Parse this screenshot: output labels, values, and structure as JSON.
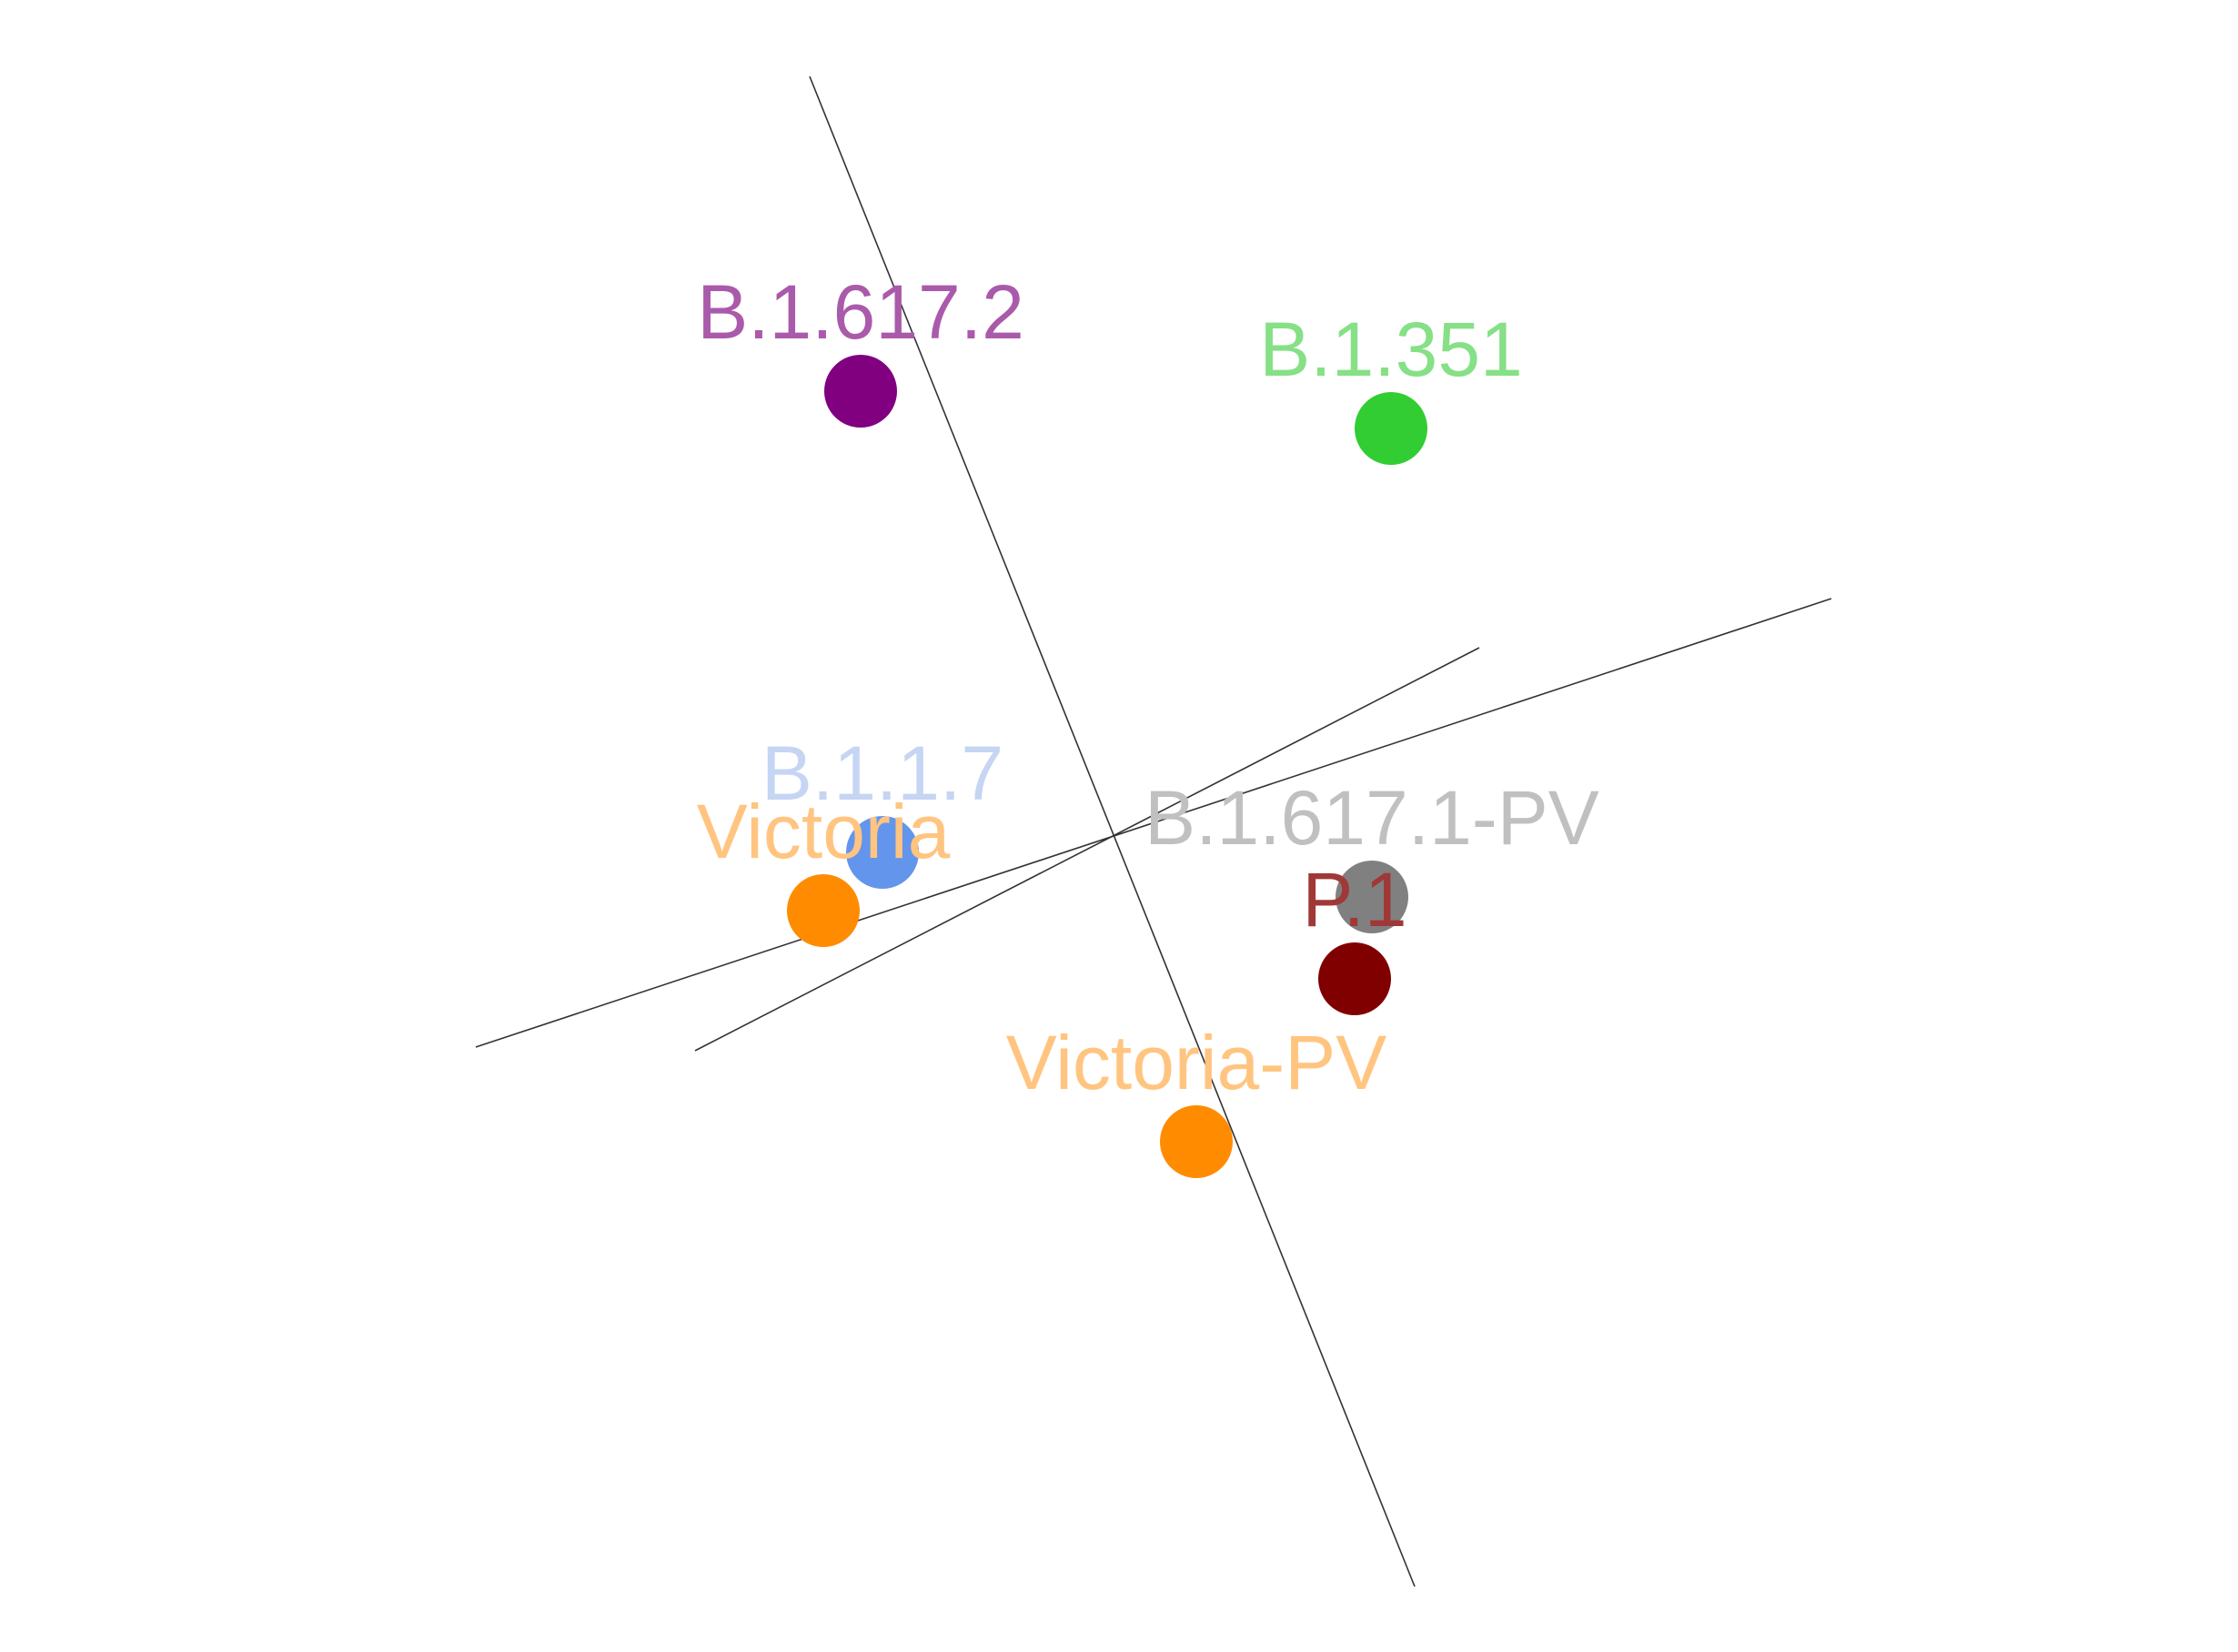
{
  "chart_data": {
    "type": "scatter",
    "title": "",
    "xlabel": "",
    "ylabel": "",
    "grid": false,
    "legend": "none",
    "axes": [
      {
        "from": [
          -3.42,
          8.3
        ],
        "to": [
          3.23,
          -8.3
        ]
      },
      {
        "from": [
          -7.09,
          -2.37
        ],
        "to": [
          7.81,
          2.56
        ]
      },
      {
        "from": [
          -4.68,
          -2.41
        ],
        "to": [
          3.94,
          2.02
        ]
      }
    ],
    "points": [
      {
        "name": "B.1.617.2",
        "x": -2.86,
        "y": 4.84,
        "color": "#800080",
        "label_color": "#aa5aaa"
      },
      {
        "name": "B.1.351",
        "x": 2.97,
        "y": 4.43,
        "color": "#32cd32",
        "label_color": "#86e086"
      },
      {
        "name": "B.1.1.7",
        "x": -2.62,
        "y": -0.23,
        "color": "#6495ed",
        "label_color": "#c5d5f3"
      },
      {
        "name": "Victoria",
        "x": -3.27,
        "y": -0.87,
        "color": "#ff8c00",
        "label_color": "#ffc580"
      },
      {
        "name": "B.1.617.1-PV",
        "x": 2.76,
        "y": -0.72,
        "color": "#808080",
        "label_color": "#c0c0c0"
      },
      {
        "name": "P.1",
        "x": 2.57,
        "y": -1.62,
        "color": "#800000",
        "label_color": "#a03838"
      },
      {
        "name": "Victoria-PV",
        "x": 0.83,
        "y": -3.41,
        "color": "#ff8c00",
        "label_color": "#ffc580"
      }
    ]
  }
}
